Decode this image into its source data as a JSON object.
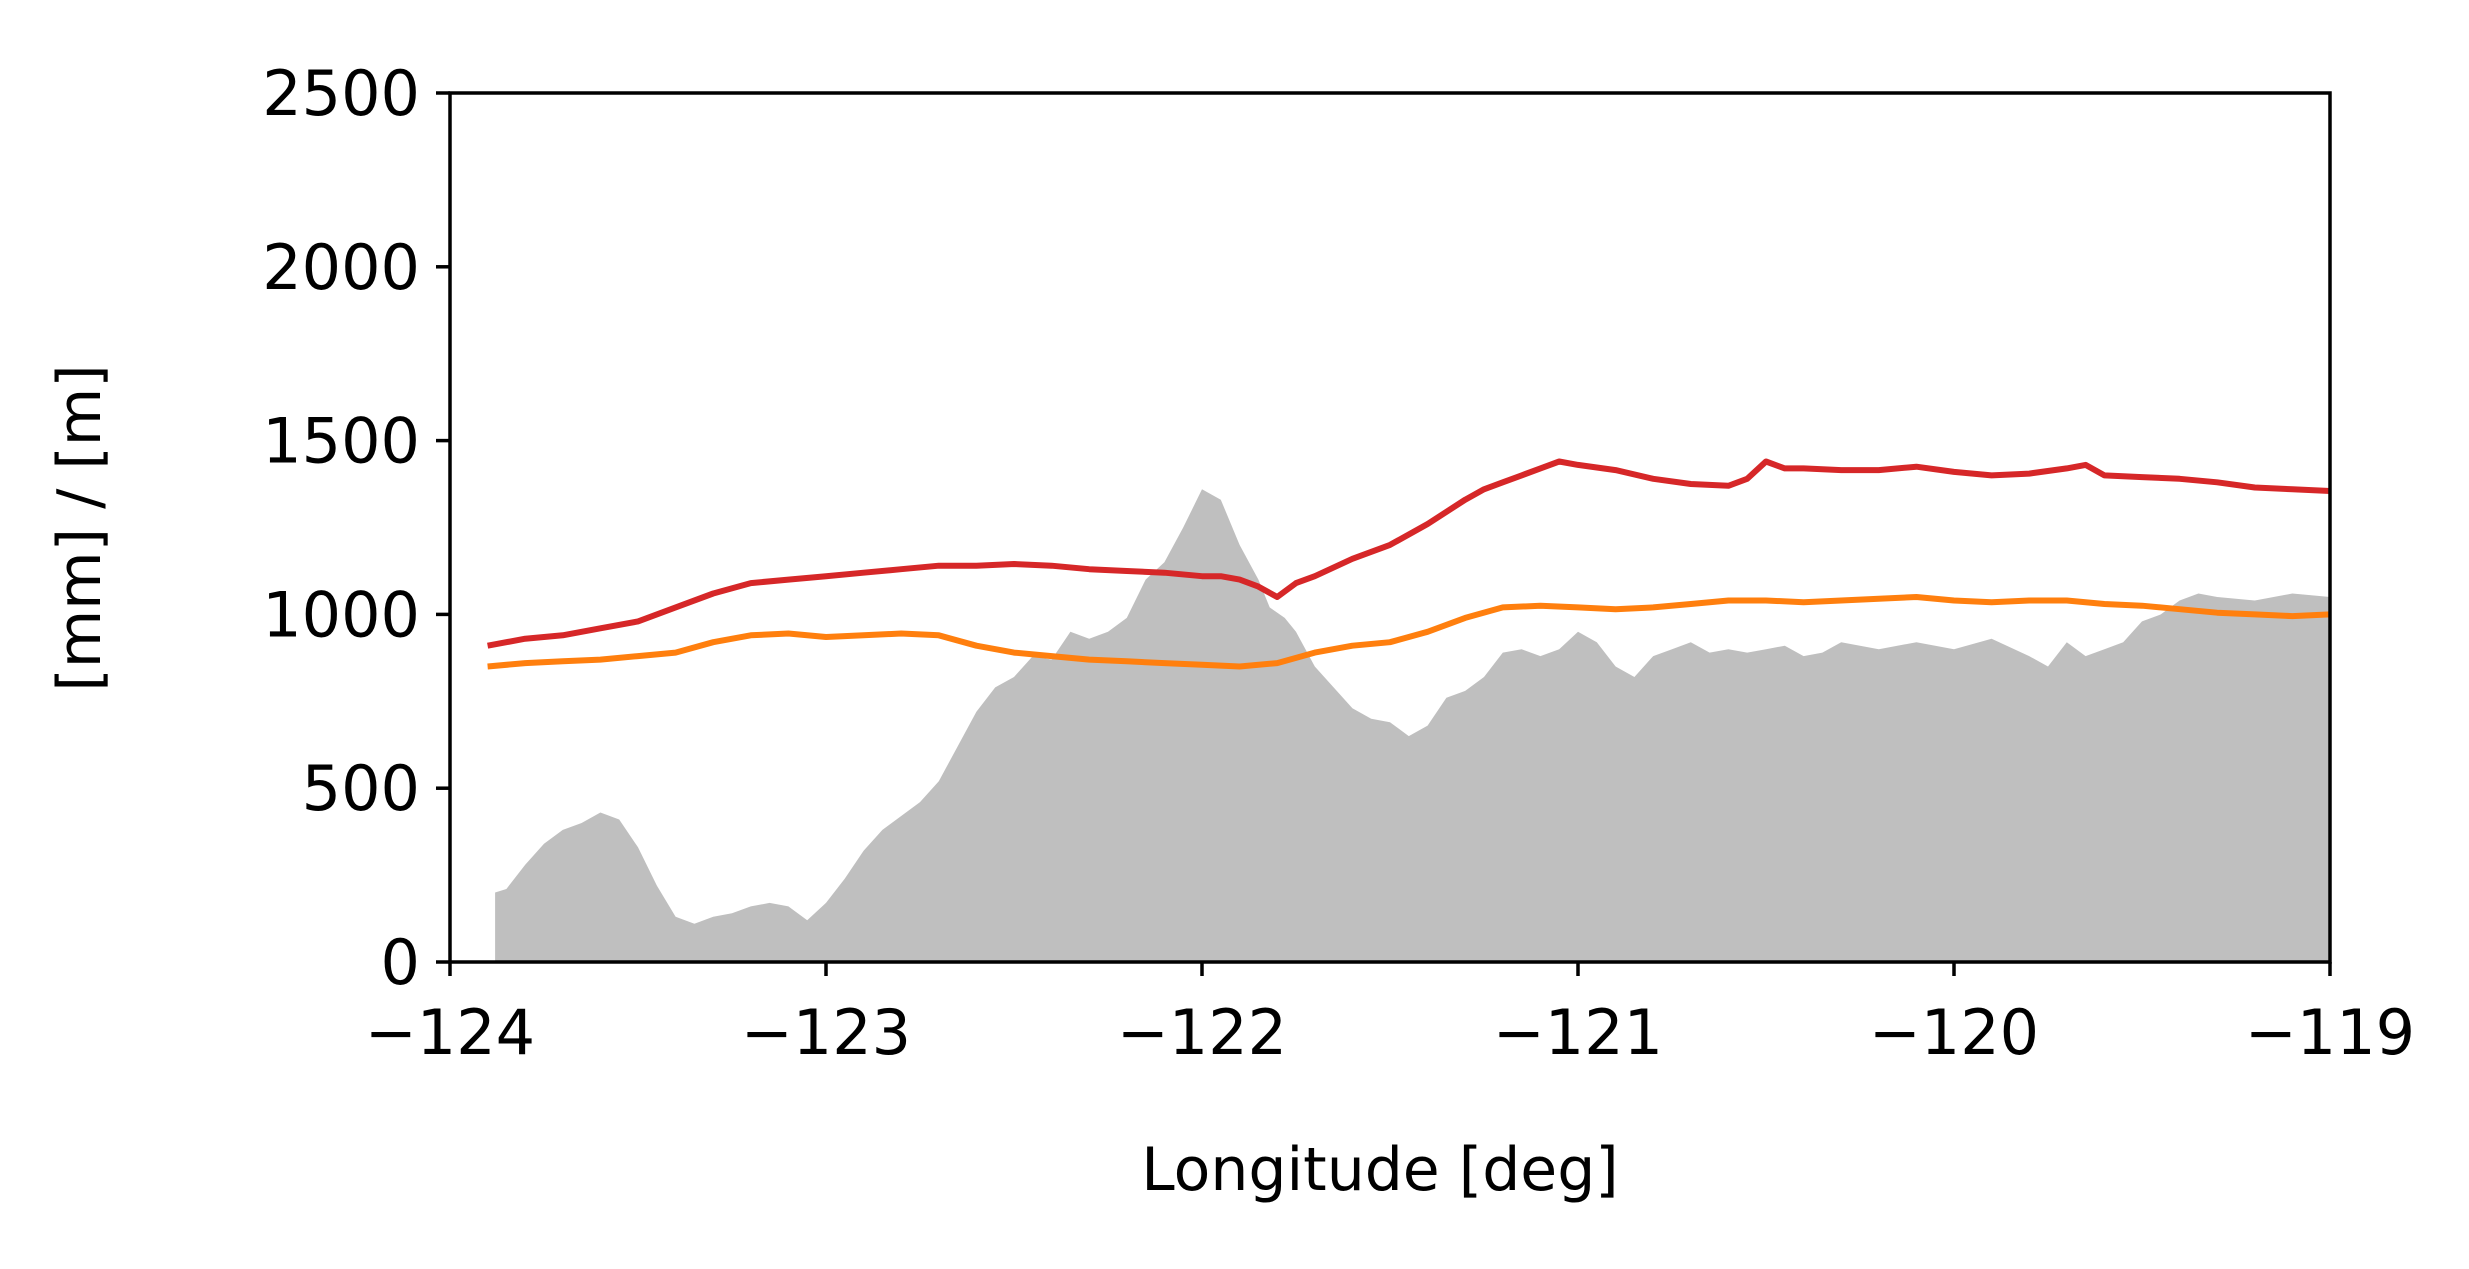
{
  "chart_data": {
    "type": "area",
    "title": "",
    "xlabel": "Longitude [deg]",
    "ylabel": "[mm] / [m]",
    "xlim": [
      -124,
      -119
    ],
    "ylim": [
      0,
      2500
    ],
    "xticks": [
      -124,
      -123,
      -122,
      -121,
      -120,
      -119
    ],
    "xtick_labels": [
      "−124",
      "−123",
      "−122",
      "−121",
      "−120",
      "−119"
    ],
    "yticks": [
      0,
      500,
      1000,
      1500,
      2000,
      2500
    ],
    "ytick_labels": [
      "0",
      "500",
      "1000",
      "1500",
      "2000",
      "2500"
    ],
    "grid": false,
    "legend": "none",
    "series": [
      {
        "kind": "area",
        "color": "#bfbfbf",
        "x": [
          -123.88,
          -123.85,
          -123.8,
          -123.75,
          -123.7,
          -123.65,
          -123.6,
          -123.55,
          -123.5,
          -123.45,
          -123.4,
          -123.35,
          -123.3,
          -123.25,
          -123.2,
          -123.15,
          -123.1,
          -123.05,
          -123.0,
          -122.95,
          -122.9,
          -122.85,
          -122.8,
          -122.75,
          -122.7,
          -122.65,
          -122.6,
          -122.55,
          -122.5,
          -122.45,
          -122.4,
          -122.35,
          -122.3,
          -122.25,
          -122.2,
          -122.15,
          -122.1,
          -122.05,
          -122.0,
          -121.95,
          -121.9,
          -121.85,
          -121.82,
          -121.78,
          -121.75,
          -121.7,
          -121.65,
          -121.6,
          -121.55,
          -121.5,
          -121.45,
          -121.4,
          -121.35,
          -121.3,
          -121.25,
          -121.2,
          -121.15,
          -121.1,
          -121.05,
          -121.0,
          -120.95,
          -120.9,
          -120.85,
          -120.8,
          -120.75,
          -120.7,
          -120.65,
          -120.6,
          -120.55,
          -120.5,
          -120.45,
          -120.4,
          -120.35,
          -120.3,
          -120.2,
          -120.1,
          -120.0,
          -119.9,
          -119.8,
          -119.75,
          -119.7,
          -119.65,
          -119.6,
          -119.55,
          -119.5,
          -119.45,
          -119.4,
          -119.35,
          -119.3,
          -119.2,
          -119.1,
          -119.0
        ],
        "y": [
          200,
          210,
          280,
          340,
          380,
          400,
          430,
          410,
          330,
          220,
          130,
          110,
          130,
          140,
          160,
          170,
          160,
          120,
          170,
          240,
          320,
          380,
          420,
          460,
          520,
          620,
          720,
          790,
          820,
          880,
          870,
          950,
          930,
          950,
          990,
          1100,
          1150,
          1250,
          1360,
          1330,
          1200,
          1100,
          1020,
          990,
          950,
          850,
          790,
          730,
          700,
          690,
          650,
          680,
          760,
          780,
          820,
          890,
          900,
          880,
          900,
          950,
          920,
          850,
          820,
          880,
          900,
          920,
          890,
          900,
          890,
          900,
          910,
          880,
          890,
          920,
          900,
          920,
          900,
          930,
          880,
          850,
          920,
          880,
          900,
          920,
          980,
          1000,
          1040,
          1060,
          1050,
          1040,
          1060,
          1050
        ]
      },
      {
        "kind": "line",
        "color": "#d62728",
        "x": [
          -123.9,
          -123.8,
          -123.7,
          -123.6,
          -123.5,
          -123.4,
          -123.3,
          -123.2,
          -123.1,
          -123.0,
          -122.9,
          -122.8,
          -122.7,
          -122.6,
          -122.5,
          -122.4,
          -122.3,
          -122.2,
          -122.1,
          -122.0,
          -121.95,
          -121.9,
          -121.85,
          -121.8,
          -121.75,
          -121.7,
          -121.6,
          -121.5,
          -121.4,
          -121.3,
          -121.25,
          -121.2,
          -121.15,
          -121.1,
          -121.05,
          -121.0,
          -120.9,
          -120.8,
          -120.7,
          -120.6,
          -120.55,
          -120.5,
          -120.45,
          -120.4,
          -120.3,
          -120.2,
          -120.1,
          -120.0,
          -119.9,
          -119.8,
          -119.7,
          -119.65,
          -119.6,
          -119.5,
          -119.4,
          -119.3,
          -119.2,
          -119.1,
          -119.0
        ],
        "y": [
          910,
          930,
          940,
          960,
          980,
          1020,
          1060,
          1090,
          1100,
          1110,
          1120,
          1130,
          1140,
          1140,
          1145,
          1140,
          1130,
          1125,
          1120,
          1110,
          1110,
          1100,
          1080,
          1050,
          1090,
          1110,
          1160,
          1200,
          1260,
          1330,
          1360,
          1380,
          1400,
          1420,
          1440,
          1430,
          1415,
          1390,
          1375,
          1370,
          1390,
          1440,
          1420,
          1420,
          1415,
          1415,
          1425,
          1410,
          1400,
          1405,
          1420,
          1430,
          1400,
          1395,
          1390,
          1380,
          1365,
          1360,
          1355
        ]
      },
      {
        "kind": "line",
        "color": "#ff7f0e",
        "x": [
          -123.9,
          -123.8,
          -123.7,
          -123.6,
          -123.5,
          -123.4,
          -123.3,
          -123.2,
          -123.1,
          -123.0,
          -122.9,
          -122.8,
          -122.7,
          -122.6,
          -122.5,
          -122.4,
          -122.3,
          -122.2,
          -122.1,
          -122.0,
          -121.9,
          -121.8,
          -121.7,
          -121.6,
          -121.5,
          -121.4,
          -121.3,
          -121.2,
          -121.1,
          -121.0,
          -120.9,
          -120.8,
          -120.7,
          -120.6,
          -120.5,
          -120.4,
          -120.3,
          -120.2,
          -120.1,
          -120.0,
          -119.9,
          -119.8,
          -119.7,
          -119.6,
          -119.5,
          -119.4,
          -119.3,
          -119.2,
          -119.1,
          -119.0
        ],
        "y": [
          850,
          860,
          865,
          870,
          880,
          890,
          920,
          940,
          945,
          935,
          940,
          945,
          940,
          910,
          890,
          880,
          870,
          865,
          860,
          855,
          850,
          860,
          890,
          910,
          920,
          950,
          990,
          1020,
          1025,
          1020,
          1015,
          1020,
          1030,
          1040,
          1040,
          1035,
          1040,
          1045,
          1050,
          1040,
          1035,
          1040,
          1040,
          1030,
          1025,
          1015,
          1005,
          1000,
          995,
          1000
        ]
      }
    ]
  }
}
